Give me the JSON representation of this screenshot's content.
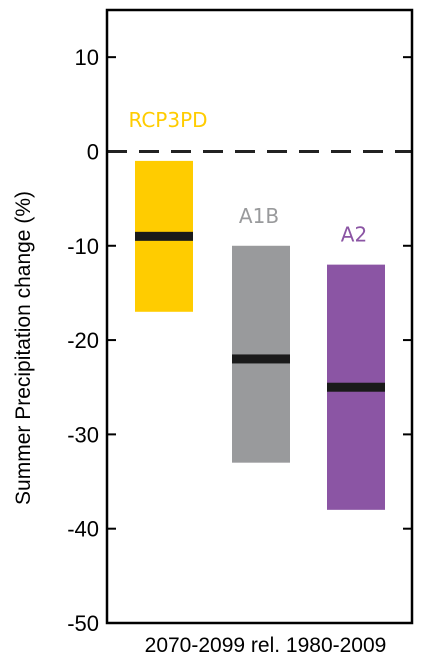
{
  "chart_data": {
    "type": "bar",
    "title": "",
    "xlabel": "2070-2099 rel. 1980-2009",
    "ylabel": "Summer Precipitation change (%)",
    "ylim": [
      -50,
      15
    ],
    "yticks": [
      10,
      0,
      -10,
      -20,
      -30,
      -40,
      -50
    ],
    "ytick_labels": [
      "10",
      "0",
      "-10",
      "-20",
      "-30",
      "-40",
      "-50"
    ],
    "zero_line": "dashed",
    "grid": false,
    "series": [
      {
        "name": "RCP3PD",
        "low": -17,
        "high": -1,
        "median": -9,
        "color": "#FFCC00",
        "label_color": "#FFCC00"
      },
      {
        "name": "A1B",
        "low": -33,
        "high": -10,
        "median": -22,
        "color": "#999A9C",
        "label_color": "#999A9C"
      },
      {
        "name": "A2",
        "low": -38,
        "high": -12,
        "median": -25,
        "color": "#8B55A4",
        "label_color": "#8B55A4"
      }
    ]
  }
}
